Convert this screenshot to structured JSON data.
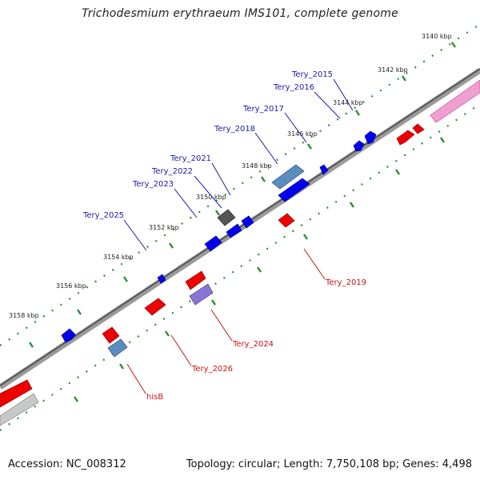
{
  "title": "Trichodesmium erythraeum IMS101, complete genome",
  "footer": {
    "accession": "Accession: NC_008312",
    "topology": "Topology: circular; Length: 7,750,108 bp; Genes: 4,498"
  },
  "colors": {
    "forward_gene": "#0000ee",
    "reverse_gene": "#ee0000",
    "forward_label": "#1a1aaa",
    "reverse_label": "#cc1111",
    "tick": "#2e8b2e",
    "backbone": "#8a8a8a"
  },
  "kbp_ticks": [
    "3140 kbp",
    "3142 kbp",
    "3144 kbp",
    "3146 kbp",
    "3148 kbp",
    "3150 kbp",
    "3152 kbp",
    "3154 kbp",
    "3156 kbp",
    "3158 kbp"
  ],
  "forward_labels": [
    "Tery_2015",
    "Tery_2016",
    "Tery_2017",
    "Tery_2018",
    "Tery_2021",
    "Tery_2022",
    "Tery_2023",
    "Tery_2025"
  ],
  "reverse_labels": [
    "Tery_2019",
    "Tery_2024",
    "Tery_2026",
    "hisB"
  ]
}
